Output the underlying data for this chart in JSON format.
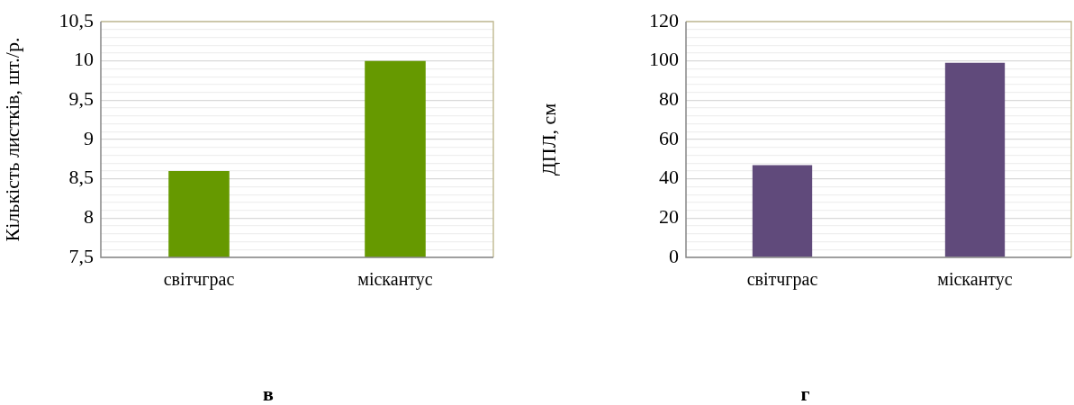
{
  "chart_data": [
    {
      "type": "bar",
      "ylabel": "Кількість листків, шт./р.",
      "categories": [
        "світчграс",
        "міскантус"
      ],
      "values": [
        8.6,
        10
      ],
      "color": "#669900",
      "ylim": [
        7.5,
        10.5
      ],
      "yticks": [
        {
          "value": 7.5,
          "label": "7,5"
        },
        {
          "value": 7.6,
          "label": null
        },
        {
          "value": 7.7,
          "label": null
        },
        {
          "value": 7.8,
          "label": null
        },
        {
          "value": 7.9,
          "label": null
        },
        8,
        {
          "value": 8.1,
          "label": null
        },
        {
          "value": 8.2,
          "label": null
        },
        {
          "value": 8.3,
          "label": null
        },
        {
          "value": 8.4,
          "label": null
        },
        {
          "value": 8.5,
          "label": "8,5"
        },
        {
          "value": 8.6,
          "label": null
        },
        {
          "value": 8.7,
          "label": null
        },
        {
          "value": 8.8,
          "label": null
        },
        {
          "value": 8.9,
          "label": null
        },
        9,
        {
          "value": 9.1,
          "label": null
        },
        {
          "value": 9.2,
          "label": null
        },
        {
          "value": 9.3,
          "label": null
        },
        {
          "value": 9.4,
          "label": null
        },
        {
          "value": 9.5,
          "label": "9,5"
        },
        {
          "value": 9.6,
          "label": null
        },
        {
          "value": 9.7,
          "label": null
        },
        {
          "value": 9.8,
          "label": null
        },
        {
          "value": 9.9,
          "label": null
        },
        10,
        {
          "value": 10.1,
          "label": null
        },
        {
          "value": 10.2,
          "label": null
        },
        {
          "value": 10.3,
          "label": null
        },
        {
          "value": 10.4,
          "label": null
        },
        {
          "value": 10.5,
          "label": "10,5"
        }
      ],
      "grid": "y",
      "legend": false,
      "annotations": [
        "в"
      ]
    },
    {
      "type": "bar",
      "ylabel": "ДПЛ, см",
      "categories": [
        "світчграс",
        "міскантус"
      ],
      "values": [
        47,
        99
      ],
      "color": "#604a7b",
      "ylim": [
        0,
        120
      ],
      "yticks": [
        0,
        {
          "value": 4,
          "label": null
        },
        {
          "value": 8,
          "label": null
        },
        {
          "value": 12,
          "label": null
        },
        {
          "value": 16,
          "label": null
        },
        20,
        {
          "value": 24,
          "label": null
        },
        {
          "value": 28,
          "label": null
        },
        {
          "value": 32,
          "label": null
        },
        {
          "value": 36,
          "label": null
        },
        40,
        {
          "value": 44,
          "label": null
        },
        {
          "value": 48,
          "label": null
        },
        {
          "value": 52,
          "label": null
        },
        {
          "value": 56,
          "label": null
        },
        60,
        {
          "value": 64,
          "label": null
        },
        {
          "value": 68,
          "label": null
        },
        {
          "value": 72,
          "label": null
        },
        {
          "value": 76,
          "label": null
        },
        80,
        {
          "value": 84,
          "label": null
        },
        {
          "value": 88,
          "label": null
        },
        {
          "value": 92,
          "label": null
        },
        {
          "value": 96,
          "label": null
        },
        100,
        {
          "value": 104,
          "label": null
        },
        {
          "value": 108,
          "label": null
        },
        {
          "value": 112,
          "label": null
        },
        {
          "value": 116,
          "label": null
        },
        120
      ],
      "grid": "y",
      "legend": false,
      "annotations": [
        "г"
      ]
    }
  ]
}
